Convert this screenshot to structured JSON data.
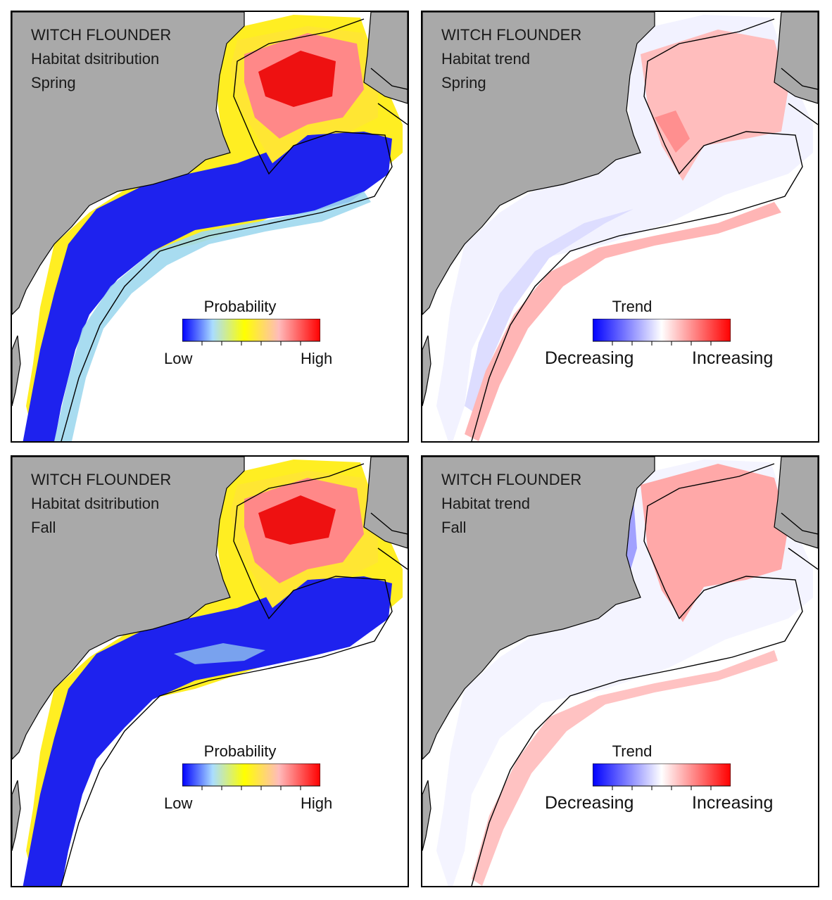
{
  "panels": [
    {
      "species": "WITCH FLOUNDER",
      "metric": "Habitat dsitribution",
      "season": "Spring",
      "legend": {
        "title": "Probability",
        "low_label": "Low",
        "high_label": "High"
      },
      "scale": "probability"
    },
    {
      "species": "WITCH FLOUNDER",
      "metric": "Habitat trend",
      "season": "Spring",
      "legend": {
        "title": "Trend",
        "low_label": "Decreasing",
        "high_label": "Increasing"
      },
      "scale": "trend"
    },
    {
      "species": "WITCH FLOUNDER",
      "metric": "Habitat dsitribution",
      "season": "Fall",
      "legend": {
        "title": "Probability",
        "low_label": "Low",
        "high_label": "High"
      },
      "scale": "probability"
    },
    {
      "species": "WITCH FLOUNDER",
      "metric": "Habitat trend",
      "season": "Fall",
      "legend": {
        "title": "Trend",
        "low_label": "Decreasing",
        "high_label": "Increasing"
      },
      "scale": "trend"
    }
  ],
  "colors": {
    "land": "#a9a9a9",
    "water": "#ffffff",
    "outline": "#000000",
    "probability_ramp": [
      "#0000ff",
      "#ffff00",
      "#ff0000"
    ],
    "trend_ramp": [
      "#0000ff",
      "#ffffff",
      "#ff0000"
    ]
  }
}
